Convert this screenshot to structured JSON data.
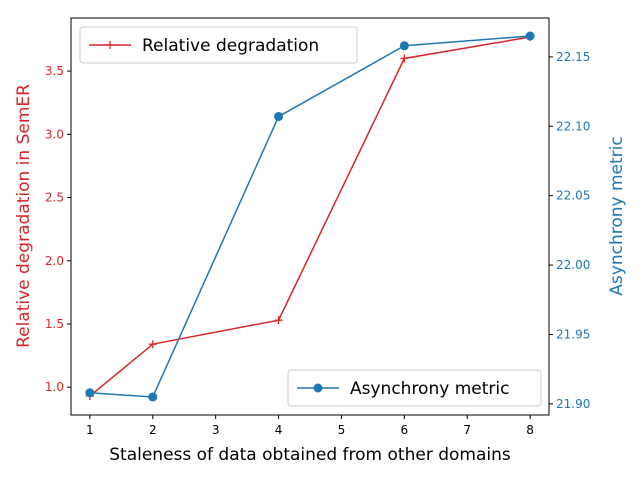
{
  "chart_data": {
    "type": "line",
    "x": [
      1,
      2,
      4,
      6,
      8
    ],
    "xlabel": "Staleness of data obtained from other domains",
    "xlim": [
      0.7,
      8.3
    ],
    "xticks": [
      1,
      2,
      3,
      4,
      5,
      6,
      7,
      8
    ],
    "grid": false,
    "series": [
      {
        "name": "Relative degradation",
        "axis": "left",
        "color": "#d62728",
        "marker": "plus",
        "values": [
          0.93,
          1.34,
          1.53,
          3.6,
          3.77
        ]
      },
      {
        "name": "Asynchrony metric",
        "axis": "right",
        "color": "#1f77b4",
        "marker": "circle",
        "values": [
          21.908,
          21.905,
          22.107,
          22.158,
          22.165
        ]
      }
    ],
    "left_axis": {
      "label": "Relative degradation in SemER",
      "color": "#d62728",
      "ylim": [
        0.78,
        3.92
      ],
      "ticks": [
        "1.0",
        "1.5",
        "2.0",
        "2.5",
        "3.0",
        "3.5"
      ],
      "tick_values": [
        1.0,
        1.5,
        2.0,
        2.5,
        3.0,
        3.5
      ]
    },
    "right_axis": {
      "label": "Asynchrony metric",
      "color": "#1f77b4",
      "ylim": [
        21.892,
        22.178
      ],
      "ticks": [
        "21.90",
        "21.95",
        "22.00",
        "22.05",
        "22.10",
        "22.15"
      ],
      "tick_values": [
        21.9,
        21.95,
        22.0,
        22.05,
        22.1,
        22.15
      ]
    },
    "legends": [
      {
        "series": "Relative degradation",
        "placement": "upper-left"
      },
      {
        "series": "Asynchrony metric",
        "placement": "lower-right"
      }
    ]
  }
}
